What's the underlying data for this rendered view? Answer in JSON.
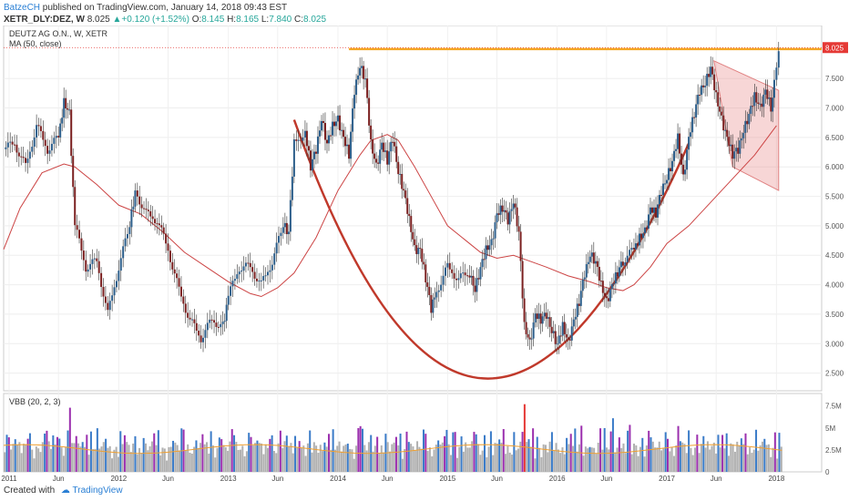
{
  "header": {
    "user": "BatzeCH",
    "published": "published on TradingView.com, January 14, 2018 09:43 EST",
    "ticker": "XETR_DLY:DEZ, W",
    "last": "8.025",
    "change": "▲+0.120 (+1.52%)",
    "o_label": "O:",
    "o": "8.145",
    "h_label": "H:",
    "h": "8.165",
    "l_label": "L:",
    "l": "7.840",
    "c_label": "C:",
    "c": "8.025"
  },
  "footer": {
    "created_with": "Created with",
    "brand": "TradingView"
  },
  "chart_data": {
    "type": "candlestick",
    "title": "DEUTZ AG O.N., W, XETR",
    "indicator": "MA (50, close)",
    "last_price_label": "8.025",
    "ylim": [
      2.2,
      8.4
    ],
    "y_ticks": [
      "2.500",
      "3.000",
      "3.500",
      "4.000",
      "4.500",
      "5.000",
      "5.500",
      "6.000",
      "6.500",
      "7.000",
      "7.500"
    ],
    "x_ticks": [
      "2011",
      "Jun",
      "2012",
      "Jun",
      "2013",
      "Jun",
      "2014",
      "Jun",
      "2015",
      "Jun",
      "2016",
      "Jun",
      "2017",
      "Jun",
      "2018"
    ],
    "close_path": [
      [
        2010.95,
        6.3
      ],
      [
        2011.05,
        6.4
      ],
      [
        2011.15,
        6.0
      ],
      [
        2011.25,
        6.7
      ],
      [
        2011.35,
        6.3
      ],
      [
        2011.45,
        6.5
      ],
      [
        2011.5,
        7.1
      ],
      [
        2011.55,
        6.9
      ],
      [
        2011.6,
        5.0
      ],
      [
        2011.7,
        4.3
      ],
      [
        2011.8,
        4.4
      ],
      [
        2011.9,
        3.5
      ],
      [
        2012.0,
        4.3
      ],
      [
        2012.1,
        5.0
      ],
      [
        2012.15,
        5.6
      ],
      [
        2012.25,
        5.2
      ],
      [
        2012.35,
        5.1
      ],
      [
        2012.45,
        4.6
      ],
      [
        2012.55,
        3.9
      ],
      [
        2012.65,
        3.4
      ],
      [
        2012.75,
        3.1
      ],
      [
        2012.85,
        3.4
      ],
      [
        2012.95,
        3.3
      ],
      [
        2013.0,
        3.8
      ],
      [
        2013.1,
        4.3
      ],
      [
        2013.2,
        4.3
      ],
      [
        2013.3,
        4.0
      ],
      [
        2013.4,
        4.4
      ],
      [
        2013.5,
        5.0
      ],
      [
        2013.55,
        4.9
      ],
      [
        2013.6,
        6.4
      ],
      [
        2013.7,
        6.6
      ],
      [
        2013.75,
        6.0
      ],
      [
        2013.8,
        6.3
      ],
      [
        2013.85,
        6.8
      ],
      [
        2013.9,
        6.4
      ],
      [
        2013.95,
        6.7
      ],
      [
        2014.0,
        6.8
      ],
      [
        2014.05,
        6.5
      ],
      [
        2014.1,
        6.2
      ],
      [
        2014.15,
        7.3
      ],
      [
        2014.2,
        7.7
      ],
      [
        2014.25,
        7.5
      ],
      [
        2014.3,
        6.4
      ],
      [
        2014.35,
        6.0
      ],
      [
        2014.4,
        6.4
      ],
      [
        2014.45,
        6.1
      ],
      [
        2014.5,
        6.5
      ],
      [
        2014.55,
        5.9
      ],
      [
        2014.6,
        5.6
      ],
      [
        2014.65,
        5.1
      ],
      [
        2014.7,
        4.6
      ],
      [
        2014.75,
        4.6
      ],
      [
        2014.8,
        4.1
      ],
      [
        2014.85,
        3.6
      ],
      [
        2014.9,
        3.9
      ],
      [
        2015.0,
        4.3
      ],
      [
        2015.1,
        4.1
      ],
      [
        2015.2,
        4.2
      ],
      [
        2015.25,
        3.9
      ],
      [
        2015.3,
        4.3
      ],
      [
        2015.35,
        4.6
      ],
      [
        2015.4,
        4.7
      ],
      [
        2015.45,
        5.2
      ],
      [
        2015.5,
        5.3
      ],
      [
        2015.55,
        5.1
      ],
      [
        2015.6,
        5.4
      ],
      [
        2015.65,
        4.9
      ],
      [
        2015.7,
        3.3
      ],
      [
        2015.75,
        3.0
      ],
      [
        2015.8,
        3.5
      ],
      [
        2015.85,
        3.4
      ],
      [
        2015.9,
        3.5
      ],
      [
        2015.95,
        3.2
      ],
      [
        2016.0,
        3.0
      ],
      [
        2016.05,
        3.3
      ],
      [
        2016.1,
        3.0
      ],
      [
        2016.15,
        3.4
      ],
      [
        2016.2,
        3.7
      ],
      [
        2016.25,
        4.2
      ],
      [
        2016.3,
        4.5
      ],
      [
        2016.35,
        4.4
      ],
      [
        2016.4,
        4.0
      ],
      [
        2016.45,
        3.7
      ],
      [
        2016.5,
        4.0
      ],
      [
        2016.55,
        4.2
      ],
      [
        2016.6,
        4.4
      ],
      [
        2016.7,
        4.6
      ],
      [
        2016.75,
        4.8
      ],
      [
        2016.8,
        4.9
      ],
      [
        2016.85,
        5.3
      ],
      [
        2016.9,
        5.2
      ],
      [
        2016.95,
        5.6
      ],
      [
        2017.0,
        5.8
      ],
      [
        2017.05,
        6.1
      ],
      [
        2017.1,
        6.5
      ],
      [
        2017.15,
        5.8
      ],
      [
        2017.2,
        6.5
      ],
      [
        2017.25,
        6.9
      ],
      [
        2017.3,
        7.3
      ],
      [
        2017.35,
        7.4
      ],
      [
        2017.4,
        7.7
      ],
      [
        2017.45,
        7.2
      ],
      [
        2017.5,
        6.8
      ],
      [
        2017.55,
        6.5
      ],
      [
        2017.6,
        6.2
      ],
      [
        2017.65,
        6.3
      ],
      [
        2017.7,
        6.6
      ],
      [
        2017.75,
        6.9
      ],
      [
        2017.8,
        7.2
      ],
      [
        2017.85,
        7.0
      ],
      [
        2017.9,
        7.3
      ],
      [
        2017.95,
        7.0
      ],
      [
        2017.98,
        7.5
      ],
      [
        2018.02,
        8.025
      ]
    ],
    "ma_path": [
      [
        2010.95,
        4.6
      ],
      [
        2011.1,
        5.3
      ],
      [
        2011.3,
        5.9
      ],
      [
        2011.5,
        6.05
      ],
      [
        2011.6,
        6.0
      ],
      [
        2011.8,
        5.7
      ],
      [
        2012.0,
        5.35
      ],
      [
        2012.2,
        5.2
      ],
      [
        2012.4,
        4.9
      ],
      [
        2012.6,
        4.55
      ],
      [
        2012.8,
        4.3
      ],
      [
        2013.0,
        4.05
      ],
      [
        2013.2,
        3.85
      ],
      [
        2013.3,
        3.8
      ],
      [
        2013.45,
        3.95
      ],
      [
        2013.6,
        4.2
      ],
      [
        2013.8,
        4.8
      ],
      [
        2014.0,
        5.6
      ],
      [
        2014.2,
        6.2
      ],
      [
        2014.3,
        6.45
      ],
      [
        2014.45,
        6.55
      ],
      [
        2014.55,
        6.45
      ],
      [
        2014.7,
        6.0
      ],
      [
        2014.85,
        5.5
      ],
      [
        2015.0,
        5.0
      ],
      [
        2015.2,
        4.7
      ],
      [
        2015.3,
        4.55
      ],
      [
        2015.45,
        4.45
      ],
      [
        2015.6,
        4.5
      ],
      [
        2015.75,
        4.4
      ],
      [
        2015.9,
        4.3
      ],
      [
        2016.1,
        4.15
      ],
      [
        2016.3,
        4.05
      ],
      [
        2016.45,
        3.95
      ],
      [
        2016.6,
        3.9
      ],
      [
        2016.7,
        4.0
      ],
      [
        2016.85,
        4.3
      ],
      [
        2017.0,
        4.7
      ],
      [
        2017.2,
        5.0
      ],
      [
        2017.4,
        5.4
      ],
      [
        2017.6,
        5.8
      ],
      [
        2017.8,
        6.2
      ],
      [
        2018.0,
        6.7
      ]
    ],
    "resistance": 8.0,
    "cup_curve": [
      [
        2013.6,
        6.8
      ],
      [
        2015.25,
        2.4
      ],
      [
        2017.2,
        6.4
      ]
    ],
    "pennant": [
      [
        2017.43,
        7.8
      ],
      [
        2018.02,
        7.3
      ],
      [
        2018.02,
        5.6
      ],
      [
        2017.6,
        6.0
      ]
    ],
    "volume": {
      "label": "VBB (20, 2, 3)",
      "y_ticks": [
        "7.5M",
        "5M",
        "2.5M",
        "0"
      ],
      "ylim": [
        0,
        8.5
      ]
    }
  }
}
